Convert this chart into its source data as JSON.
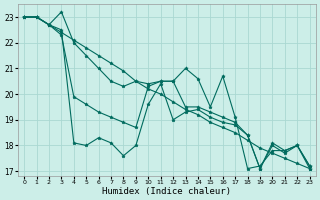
{
  "xlabel": "Humidex (Indice chaleur)",
  "bg_color": "#cceee8",
  "grid_color": "#aad8d2",
  "line_color": "#006b5e",
  "xlim": [
    -0.5,
    23.5
  ],
  "ylim": [
    16.8,
    23.5
  ],
  "yticks": [
    17,
    18,
    19,
    20,
    21,
    22,
    23
  ],
  "xticks": [
    0,
    1,
    2,
    3,
    4,
    5,
    6,
    7,
    8,
    9,
    10,
    11,
    12,
    13,
    14,
    15,
    16,
    17,
    18,
    19,
    20,
    21,
    22,
    23
  ],
  "series": [
    {
      "x": [
        0,
        1,
        2,
        3,
        4,
        5,
        6,
        7,
        8,
        9,
        10,
        11,
        12,
        13,
        14,
        15,
        16,
        17,
        18,
        19,
        20,
        21,
        22,
        23
      ],
      "y": [
        23,
        23,
        22.7,
        22.5,
        18.1,
        18.0,
        18.3,
        18.1,
        17.6,
        18.0,
        19.6,
        20.4,
        19.0,
        19.3,
        19.4,
        19.1,
        18.9,
        18.8,
        18.4,
        17.1,
        18.1,
        17.8,
        18.0,
        17.2
      ]
    },
    {
      "x": [
        0,
        1,
        2,
        3,
        4,
        5,
        6,
        7,
        8,
        9,
        10,
        11,
        12,
        13,
        14,
        15,
        16,
        17,
        18,
        19,
        20,
        21,
        22,
        23
      ],
      "y": [
        23,
        23,
        22.7,
        22.4,
        22.1,
        21.8,
        21.5,
        21.2,
        20.9,
        20.5,
        20.2,
        20.0,
        19.7,
        19.4,
        19.2,
        18.9,
        18.7,
        18.5,
        18.2,
        17.9,
        17.7,
        17.5,
        17.3,
        17.1
      ]
    },
    {
      "x": [
        0,
        1,
        2,
        3,
        4,
        5,
        6,
        7,
        8,
        9,
        10,
        11,
        12,
        13,
        14,
        15,
        16,
        17,
        18,
        19,
        20,
        21,
        22,
        23
      ],
      "y": [
        23,
        23,
        22.7,
        23.2,
        22.0,
        21.5,
        21.0,
        20.5,
        20.3,
        20.5,
        20.4,
        20.5,
        20.5,
        21.0,
        20.6,
        19.5,
        20.7,
        19.1,
        17.1,
        17.2,
        17.8,
        17.8,
        18.0,
        17.1
      ]
    },
    {
      "x": [
        0,
        1,
        2,
        3,
        4,
        5,
        6,
        7,
        8,
        9,
        10,
        11,
        12,
        13,
        14,
        15,
        16,
        17,
        18,
        19,
        20,
        21,
        22,
        23
      ],
      "y": [
        23,
        23,
        22.7,
        22.3,
        19.9,
        19.6,
        19.3,
        19.1,
        18.9,
        18.7,
        20.3,
        20.5,
        20.5,
        19.5,
        19.5,
        19.3,
        19.1,
        18.9,
        18.4,
        17.1,
        18.0,
        17.7,
        18.0,
        17.2
      ]
    }
  ]
}
